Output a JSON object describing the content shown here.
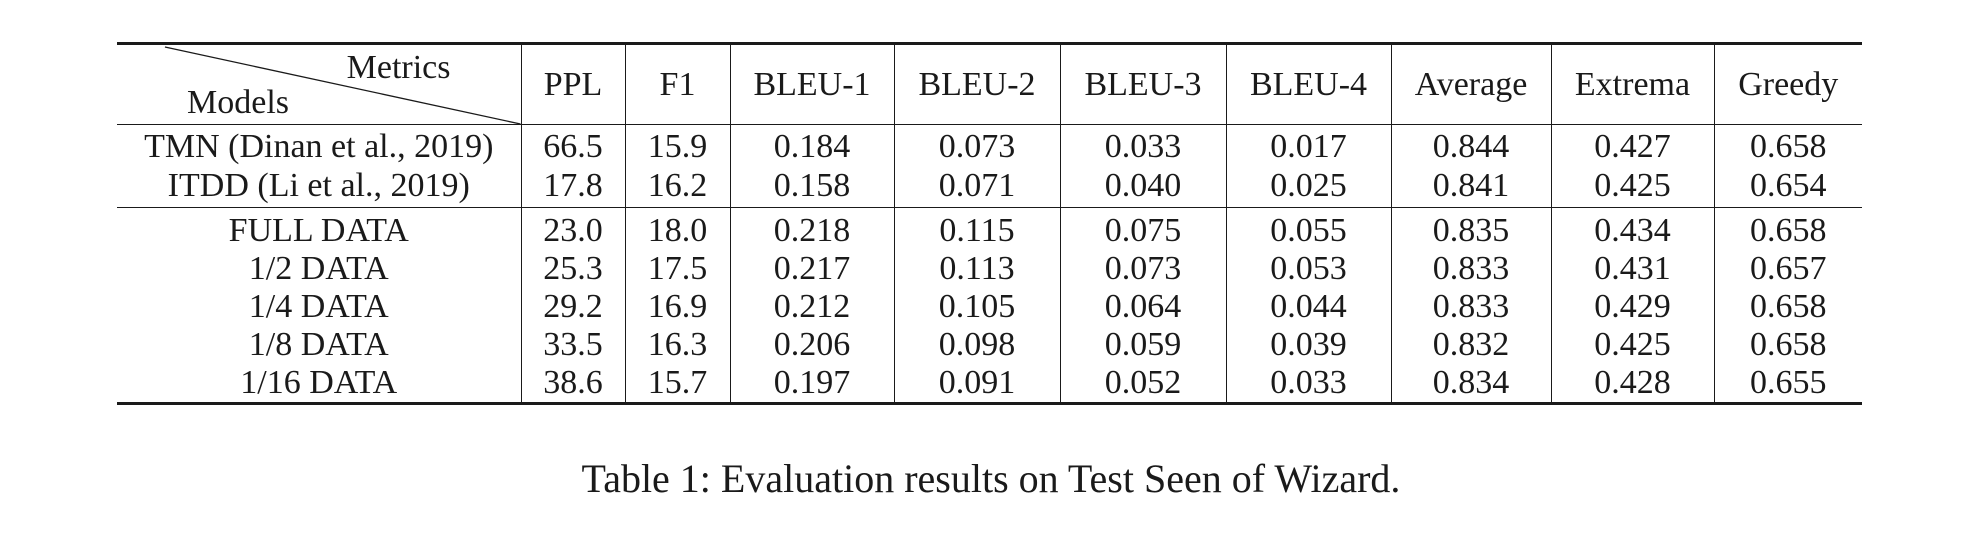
{
  "table": {
    "header": {
      "corner_top": "Metrics",
      "corner_bottom": "Models",
      "columns": [
        "PPL",
        "F1",
        "BLEU-1",
        "BLEU-2",
        "BLEU-3",
        "BLEU-4",
        "Average",
        "Extrema",
        "Greedy"
      ]
    },
    "baselines": [
      {
        "model": "TMN (Dinan et al., 2019)",
        "values": [
          "66.5",
          "15.9",
          "0.184",
          "0.073",
          "0.033",
          "0.017",
          "0.844",
          "0.427",
          "0.658"
        ]
      },
      {
        "model": "ITDD (Li et al., 2019)",
        "values": [
          "17.8",
          "16.2",
          "0.158",
          "0.071",
          "0.040",
          "0.025",
          "0.841",
          "0.425",
          "0.654"
        ]
      }
    ],
    "data_variants": [
      {
        "model": "FULL DATA",
        "values": [
          "23.0",
          "18.0",
          "0.218",
          "0.115",
          "0.075",
          "0.055",
          "0.835",
          "0.434",
          "0.658"
        ]
      },
      {
        "model": "1/2 DATA",
        "values": [
          "25.3",
          "17.5",
          "0.217",
          "0.113",
          "0.073",
          "0.053",
          "0.833",
          "0.431",
          "0.657"
        ]
      },
      {
        "model": "1/4 DATA",
        "values": [
          "29.2",
          "16.9",
          "0.212",
          "0.105",
          "0.064",
          "0.044",
          "0.833",
          "0.429",
          "0.658"
        ]
      },
      {
        "model": "1/8 DATA",
        "values": [
          "33.5",
          "16.3",
          "0.206",
          "0.098",
          "0.059",
          "0.039",
          "0.832",
          "0.425",
          "0.658"
        ]
      },
      {
        "model": "1/16 DATA",
        "values": [
          "38.6",
          "15.7",
          "0.197",
          "0.091",
          "0.052",
          "0.033",
          "0.834",
          "0.428",
          "0.655"
        ]
      }
    ]
  },
  "caption": "Table 1: Evaluation results on Test Seen of Wizard."
}
